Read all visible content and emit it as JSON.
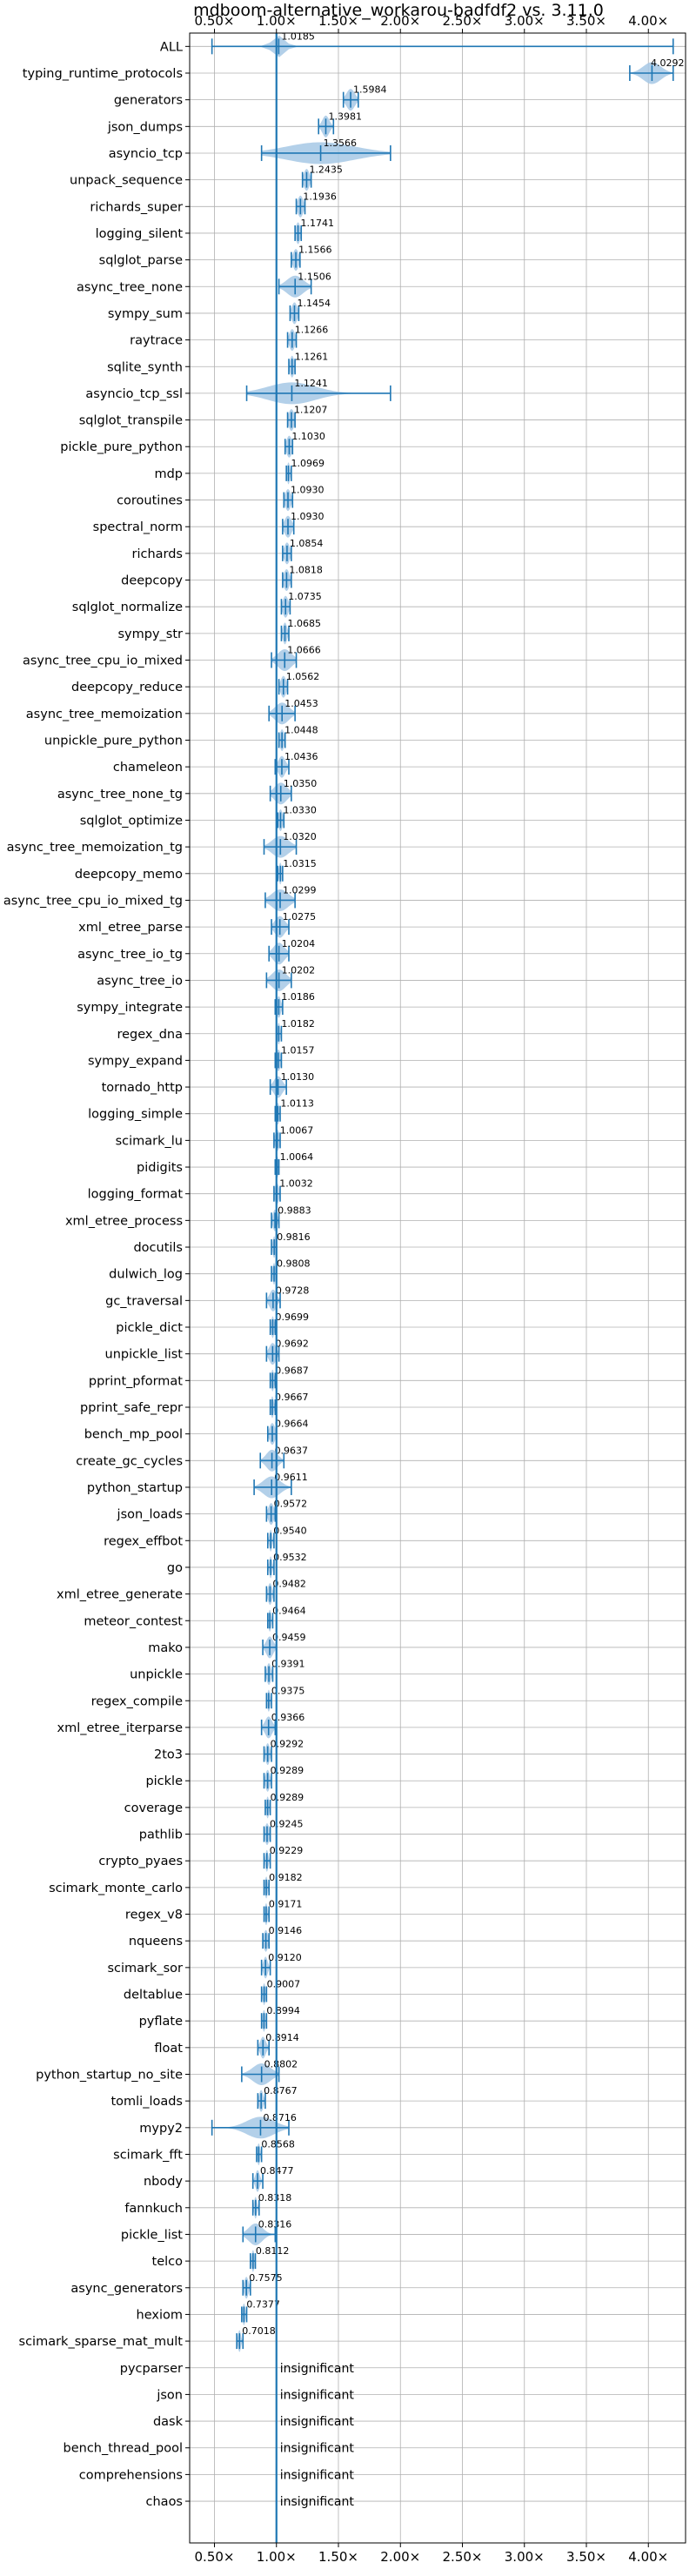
{
  "chart_data": {
    "type": "violin",
    "title": "mdboom-alternative_workarou-badfdf2 vs. 3.11.0",
    "x_ticks": [
      "0.50×",
      "1.00×",
      "1.50×",
      "2.00×",
      "2.50×",
      "3.00×",
      "3.50×",
      "4.00×"
    ],
    "x_tick_values": [
      0.5,
      1.0,
      1.5,
      2.0,
      2.5,
      3.0,
      3.5,
      4.0
    ],
    "xlim": [
      0.3,
      4.3
    ],
    "reference_value": 1.0,
    "grid": true,
    "colors": {
      "fill": "#a6c8e5",
      "stroke": "#1f77b4",
      "grid": "#b0b0b0"
    },
    "insignificant_label": "insignificant",
    "benchmarks": [
      {
        "name": "ALL",
        "label": "1.0185",
        "mean": 1.0185,
        "min": 0.48,
        "max": 4.2,
        "spread": 0.09
      },
      {
        "name": "typing_runtime_protocols",
        "label": "4.0292",
        "mean": 4.0292,
        "min": 3.85,
        "max": 4.2,
        "spread": 0.13
      },
      {
        "name": "generators",
        "label": "1.5984",
        "mean": 1.5984,
        "min": 1.54,
        "max": 1.66,
        "spread": 0.06
      },
      {
        "name": "json_dumps",
        "label": "1.3981",
        "mean": 1.3981,
        "min": 1.34,
        "max": 1.46,
        "spread": 0.05
      },
      {
        "name": "asyncio_tcp",
        "label": "1.3566",
        "mean": 1.3566,
        "min": 0.88,
        "max": 1.92,
        "spread": 0.5
      },
      {
        "name": "unpack_sequence",
        "label": "1.2435",
        "mean": 1.2435,
        "min": 1.21,
        "max": 1.28,
        "spread": 0.04
      },
      {
        "name": "richards_super",
        "label": "1.1936",
        "mean": 1.1936,
        "min": 1.16,
        "max": 1.23,
        "spread": 0.04
      },
      {
        "name": "logging_silent",
        "label": "1.1741",
        "mean": 1.1741,
        "min": 1.15,
        "max": 1.2,
        "spread": 0.03
      },
      {
        "name": "sqlglot_parse",
        "label": "1.1566",
        "mean": 1.1566,
        "min": 1.12,
        "max": 1.19,
        "spread": 0.04
      },
      {
        "name": "async_tree_none",
        "label": "1.1506",
        "mean": 1.1506,
        "min": 1.02,
        "max": 1.28,
        "spread": 0.12
      },
      {
        "name": "sympy_sum",
        "label": "1.1454",
        "mean": 1.1454,
        "min": 1.11,
        "max": 1.18,
        "spread": 0.04
      },
      {
        "name": "raytrace",
        "label": "1.1266",
        "mean": 1.1266,
        "min": 1.09,
        "max": 1.16,
        "spread": 0.04
      },
      {
        "name": "sqlite_synth",
        "label": "1.1261",
        "mean": 1.1261,
        "min": 1.1,
        "max": 1.15,
        "spread": 0.03
      },
      {
        "name": "asyncio_tcp_ssl",
        "label": "1.1241",
        "mean": 1.1241,
        "min": 0.76,
        "max": 1.92,
        "spread": 0.35
      },
      {
        "name": "sqlglot_transpile",
        "label": "1.1207",
        "mean": 1.1207,
        "min": 1.09,
        "max": 1.15,
        "spread": 0.04
      },
      {
        "name": "pickle_pure_python",
        "label": "1.1030",
        "mean": 1.103,
        "min": 1.07,
        "max": 1.13,
        "spread": 0.04
      },
      {
        "name": "mdp",
        "label": "1.0969",
        "mean": 1.0969,
        "min": 1.08,
        "max": 1.12,
        "spread": 0.02
      },
      {
        "name": "coroutines",
        "label": "1.0930",
        "mean": 1.093,
        "min": 1.06,
        "max": 1.13,
        "spread": 0.04
      },
      {
        "name": "spectral_norm",
        "label": "1.0930",
        "mean": 1.093,
        "min": 1.05,
        "max": 1.14,
        "spread": 0.05
      },
      {
        "name": "richards",
        "label": "1.0854",
        "mean": 1.0854,
        "min": 1.05,
        "max": 1.12,
        "spread": 0.04
      },
      {
        "name": "deepcopy",
        "label": "1.0818",
        "mean": 1.0818,
        "min": 1.05,
        "max": 1.12,
        "spread": 0.04
      },
      {
        "name": "sqlglot_normalize",
        "label": "1.0735",
        "mean": 1.0735,
        "min": 1.04,
        "max": 1.11,
        "spread": 0.04
      },
      {
        "name": "sympy_str",
        "label": "1.0685",
        "mean": 1.0685,
        "min": 1.04,
        "max": 1.1,
        "spread": 0.03
      },
      {
        "name": "async_tree_cpu_io_mixed",
        "label": "1.0666",
        "mean": 1.0666,
        "min": 0.96,
        "max": 1.16,
        "spread": 0.1
      },
      {
        "name": "deepcopy_reduce",
        "label": "1.0562",
        "mean": 1.0562,
        "min": 1.02,
        "max": 1.09,
        "spread": 0.04
      },
      {
        "name": "async_tree_memoization",
        "label": "1.0453",
        "mean": 1.0453,
        "min": 0.94,
        "max": 1.15,
        "spread": 0.1
      },
      {
        "name": "unpickle_pure_python",
        "label": "1.0448",
        "mean": 1.0448,
        "min": 1.02,
        "max": 1.07,
        "spread": 0.03
      },
      {
        "name": "chameleon",
        "label": "1.0436",
        "mean": 1.0436,
        "min": 0.99,
        "max": 1.1,
        "spread": 0.05
      },
      {
        "name": "async_tree_none_tg",
        "label": "1.0350",
        "mean": 1.035,
        "min": 0.95,
        "max": 1.12,
        "spread": 0.09
      },
      {
        "name": "sqlglot_optimize",
        "label": "1.0330",
        "mean": 1.033,
        "min": 1.01,
        "max": 1.06,
        "spread": 0.03
      },
      {
        "name": "async_tree_memoization_tg",
        "label": "1.0320",
        "mean": 1.032,
        "min": 0.9,
        "max": 1.16,
        "spread": 0.12
      },
      {
        "name": "deepcopy_memo",
        "label": "1.0315",
        "mean": 1.0315,
        "min": 1.01,
        "max": 1.05,
        "spread": 0.02
      },
      {
        "name": "async_tree_cpu_io_mixed_tg",
        "label": "1.0299",
        "mean": 1.0299,
        "min": 0.91,
        "max": 1.15,
        "spread": 0.12
      },
      {
        "name": "xml_etree_parse",
        "label": "1.0275",
        "mean": 1.0275,
        "min": 0.96,
        "max": 1.1,
        "spread": 0.07
      },
      {
        "name": "async_tree_io_tg",
        "label": "1.0204",
        "mean": 1.0204,
        "min": 0.94,
        "max": 1.1,
        "spread": 0.08
      },
      {
        "name": "async_tree_io",
        "label": "1.0202",
        "mean": 1.0202,
        "min": 0.92,
        "max": 1.12,
        "spread": 0.1
      },
      {
        "name": "sympy_integrate",
        "label": "1.0186",
        "mean": 1.0186,
        "min": 0.99,
        "max": 1.05,
        "spread": 0.03
      },
      {
        "name": "regex_dna",
        "label": "1.0182",
        "mean": 1.0182,
        "min": 1.0,
        "max": 1.04,
        "spread": 0.02
      },
      {
        "name": "sympy_expand",
        "label": "1.0157",
        "mean": 1.0157,
        "min": 0.99,
        "max": 1.04,
        "spread": 0.03
      },
      {
        "name": "tornado_http",
        "label": "1.0130",
        "mean": 1.013,
        "min": 0.95,
        "max": 1.08,
        "spread": 0.06
      },
      {
        "name": "logging_simple",
        "label": "1.0113",
        "mean": 1.0113,
        "min": 0.99,
        "max": 1.03,
        "spread": 0.02
      },
      {
        "name": "scimark_lu",
        "label": "1.0067",
        "mean": 1.0067,
        "min": 0.98,
        "max": 1.03,
        "spread": 0.03
      },
      {
        "name": "pidigits",
        "label": "1.0064",
        "mean": 1.0064,
        "min": 0.99,
        "max": 1.02,
        "spread": 0.02
      },
      {
        "name": "logging_format",
        "label": "1.0032",
        "mean": 1.0032,
        "min": 0.98,
        "max": 1.03,
        "spread": 0.03
      },
      {
        "name": "xml_etree_process",
        "label": "0.9883",
        "mean": 0.9883,
        "min": 0.96,
        "max": 1.02,
        "spread": 0.03
      },
      {
        "name": "docutils",
        "label": "0.9816",
        "mean": 0.9816,
        "min": 0.96,
        "max": 1.0,
        "spread": 0.02
      },
      {
        "name": "dulwich_log",
        "label": "0.9808",
        "mean": 0.9808,
        "min": 0.96,
        "max": 1.0,
        "spread": 0.02
      },
      {
        "name": "gc_traversal",
        "label": "0.9728",
        "mean": 0.9728,
        "min": 0.92,
        "max": 1.03,
        "spread": 0.05
      },
      {
        "name": "pickle_dict",
        "label": "0.9699",
        "mean": 0.9699,
        "min": 0.95,
        "max": 0.99,
        "spread": 0.02
      },
      {
        "name": "unpickle_list",
        "label": "0.9692",
        "mean": 0.9692,
        "min": 0.92,
        "max": 1.02,
        "spread": 0.05
      },
      {
        "name": "pprint_pformat",
        "label": "0.9687",
        "mean": 0.9687,
        "min": 0.95,
        "max": 0.99,
        "spread": 0.02
      },
      {
        "name": "pprint_safe_repr",
        "label": "0.9667",
        "mean": 0.9667,
        "min": 0.95,
        "max": 0.99,
        "spread": 0.02
      },
      {
        "name": "bench_mp_pool",
        "label": "0.9664",
        "mean": 0.9664,
        "min": 0.93,
        "max": 1.0,
        "spread": 0.04
      },
      {
        "name": "create_gc_cycles",
        "label": "0.9637",
        "mean": 0.9637,
        "min": 0.87,
        "max": 1.06,
        "spread": 0.08
      },
      {
        "name": "python_startup",
        "label": "0.9611",
        "mean": 0.9611,
        "min": 0.82,
        "max": 1.12,
        "spread": 0.12
      },
      {
        "name": "json_loads",
        "label": "0.9572",
        "mean": 0.9572,
        "min": 0.92,
        "max": 0.99,
        "spread": 0.04
      },
      {
        "name": "regex_effbot",
        "label": "0.9540",
        "mean": 0.954,
        "min": 0.93,
        "max": 0.98,
        "spread": 0.02
      },
      {
        "name": "go",
        "label": "0.9532",
        "mean": 0.9532,
        "min": 0.93,
        "max": 0.98,
        "spread": 0.02
      },
      {
        "name": "xml_etree_generate",
        "label": "0.9482",
        "mean": 0.9482,
        "min": 0.92,
        "max": 0.98,
        "spread": 0.03
      },
      {
        "name": "meteor_contest",
        "label": "0.9464",
        "mean": 0.9464,
        "min": 0.93,
        "max": 0.97,
        "spread": 0.02
      },
      {
        "name": "mako",
        "label": "0.9459",
        "mean": 0.9459,
        "min": 0.89,
        "max": 1.0,
        "spread": 0.05
      },
      {
        "name": "unpickle",
        "label": "0.9391",
        "mean": 0.9391,
        "min": 0.91,
        "max": 0.97,
        "spread": 0.03
      },
      {
        "name": "regex_compile",
        "label": "0.9375",
        "mean": 0.9375,
        "min": 0.92,
        "max": 0.96,
        "spread": 0.02
      },
      {
        "name": "xml_etree_iterparse",
        "label": "0.9366",
        "mean": 0.9366,
        "min": 0.88,
        "max": 0.99,
        "spread": 0.05
      },
      {
        "name": "2to3",
        "label": "0.9292",
        "mean": 0.9292,
        "min": 0.9,
        "max": 0.96,
        "spread": 0.03
      },
      {
        "name": "pickle",
        "label": "0.9289",
        "mean": 0.9289,
        "min": 0.9,
        "max": 0.96,
        "spread": 0.03
      },
      {
        "name": "coverage",
        "label": "0.9289",
        "mean": 0.9289,
        "min": 0.91,
        "max": 0.95,
        "spread": 0.02
      },
      {
        "name": "pathlib",
        "label": "0.9245",
        "mean": 0.9245,
        "min": 0.9,
        "max": 0.95,
        "spread": 0.03
      },
      {
        "name": "crypto_pyaes",
        "label": "0.9229",
        "mean": 0.9229,
        "min": 0.9,
        "max": 0.95,
        "spread": 0.02
      },
      {
        "name": "scimark_monte_carlo",
        "label": "0.9182",
        "mean": 0.9182,
        "min": 0.9,
        "max": 0.94,
        "spread": 0.02
      },
      {
        "name": "regex_v8",
        "label": "0.9171",
        "mean": 0.9171,
        "min": 0.9,
        "max": 0.94,
        "spread": 0.02
      },
      {
        "name": "nqueens",
        "label": "0.9146",
        "mean": 0.9146,
        "min": 0.89,
        "max": 0.94,
        "spread": 0.03
      },
      {
        "name": "scimark_sor",
        "label": "0.9120",
        "mean": 0.912,
        "min": 0.88,
        "max": 0.95,
        "spread": 0.03
      },
      {
        "name": "deltablue",
        "label": "0.9007",
        "mean": 0.9007,
        "min": 0.88,
        "max": 0.92,
        "spread": 0.02
      },
      {
        "name": "pyflate",
        "label": "0.8994",
        "mean": 0.8994,
        "min": 0.88,
        "max": 0.92,
        "spread": 0.02
      },
      {
        "name": "float",
        "label": "0.8914",
        "mean": 0.8914,
        "min": 0.85,
        "max": 0.94,
        "spread": 0.04
      },
      {
        "name": "python_startup_no_site",
        "label": "0.8802",
        "mean": 0.8802,
        "min": 0.72,
        "max": 1.02,
        "spread": 0.13
      },
      {
        "name": "tomli_loads",
        "label": "0.8767",
        "mean": 0.8767,
        "min": 0.85,
        "max": 0.91,
        "spread": 0.03
      },
      {
        "name": "mypy2",
        "label": "0.8716",
        "mean": 0.8716,
        "min": 0.48,
        "max": 1.1,
        "spread": 0.2
      },
      {
        "name": "scimark_fft",
        "label": "0.8568",
        "mean": 0.8568,
        "min": 0.84,
        "max": 0.88,
        "spread": 0.02
      },
      {
        "name": "nbody",
        "label": "0.8477",
        "mean": 0.8477,
        "min": 0.81,
        "max": 0.89,
        "spread": 0.03
      },
      {
        "name": "fannkuch",
        "label": "0.8318",
        "mean": 0.8318,
        "min": 0.81,
        "max": 0.86,
        "spread": 0.02
      },
      {
        "name": "pickle_list",
        "label": "0.8316",
        "mean": 0.8316,
        "min": 0.73,
        "max": 0.99,
        "spread": 0.1
      },
      {
        "name": "telco",
        "label": "0.8112",
        "mean": 0.8112,
        "min": 0.79,
        "max": 0.83,
        "spread": 0.02
      },
      {
        "name": "async_generators",
        "label": "0.7575",
        "mean": 0.7575,
        "min": 0.73,
        "max": 0.79,
        "spread": 0.03
      },
      {
        "name": "hexiom",
        "label": "0.7377",
        "mean": 0.7377,
        "min": 0.72,
        "max": 0.76,
        "spread": 0.02
      },
      {
        "name": "scimark_sparse_mat_mult",
        "label": "0.7018",
        "mean": 0.7018,
        "min": 0.68,
        "max": 0.73,
        "spread": 0.02
      },
      {
        "name": "pycparser",
        "insignificant": true
      },
      {
        "name": "json",
        "insignificant": true
      },
      {
        "name": "dask",
        "insignificant": true
      },
      {
        "name": "bench_thread_pool",
        "insignificant": true
      },
      {
        "name": "comprehensions",
        "insignificant": true
      },
      {
        "name": "chaos",
        "insignificant": true
      }
    ]
  }
}
